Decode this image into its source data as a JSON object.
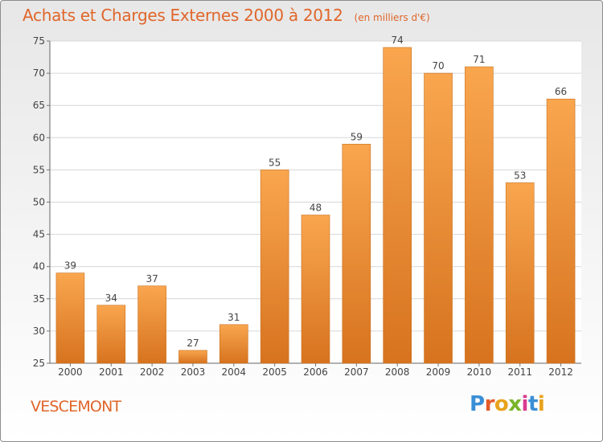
{
  "header": {
    "title": "Achats et Charges Externes 2000 à 2012",
    "unit": "(en milliers d'€)"
  },
  "footer": {
    "commune": "VESCEMONT",
    "logo_letters": [
      "P",
      "r",
      "o",
      "x",
      "i",
      "t",
      "i"
    ]
  },
  "colors": {
    "accent": "#e0662a",
    "bar_light": "#f9a64f",
    "bar_dark": "#d7731f",
    "logo": [
      "#3a8fd6",
      "#e35a2a",
      "#e8a21b",
      "#7ab42a",
      "#d93b8f",
      "#3a8fd6",
      "#e8a21b"
    ]
  },
  "chart_data": {
    "type": "bar",
    "title": "Achats et Charges Externes 2000 à 2012",
    "subtitle": "(en milliers d'€)",
    "categories": [
      "2000",
      "2001",
      "2002",
      "2003",
      "2004",
      "2005",
      "2006",
      "2007",
      "2008",
      "2009",
      "2010",
      "2011",
      "2012"
    ],
    "values": [
      39,
      34,
      37,
      27,
      31,
      55,
      48,
      59,
      74,
      70,
      71,
      53,
      66
    ],
    "ylim": [
      25,
      75
    ],
    "yticks": [
      25,
      30,
      35,
      40,
      45,
      50,
      55,
      60,
      65,
      70,
      75
    ],
    "grid": true,
    "legend": "none"
  }
}
